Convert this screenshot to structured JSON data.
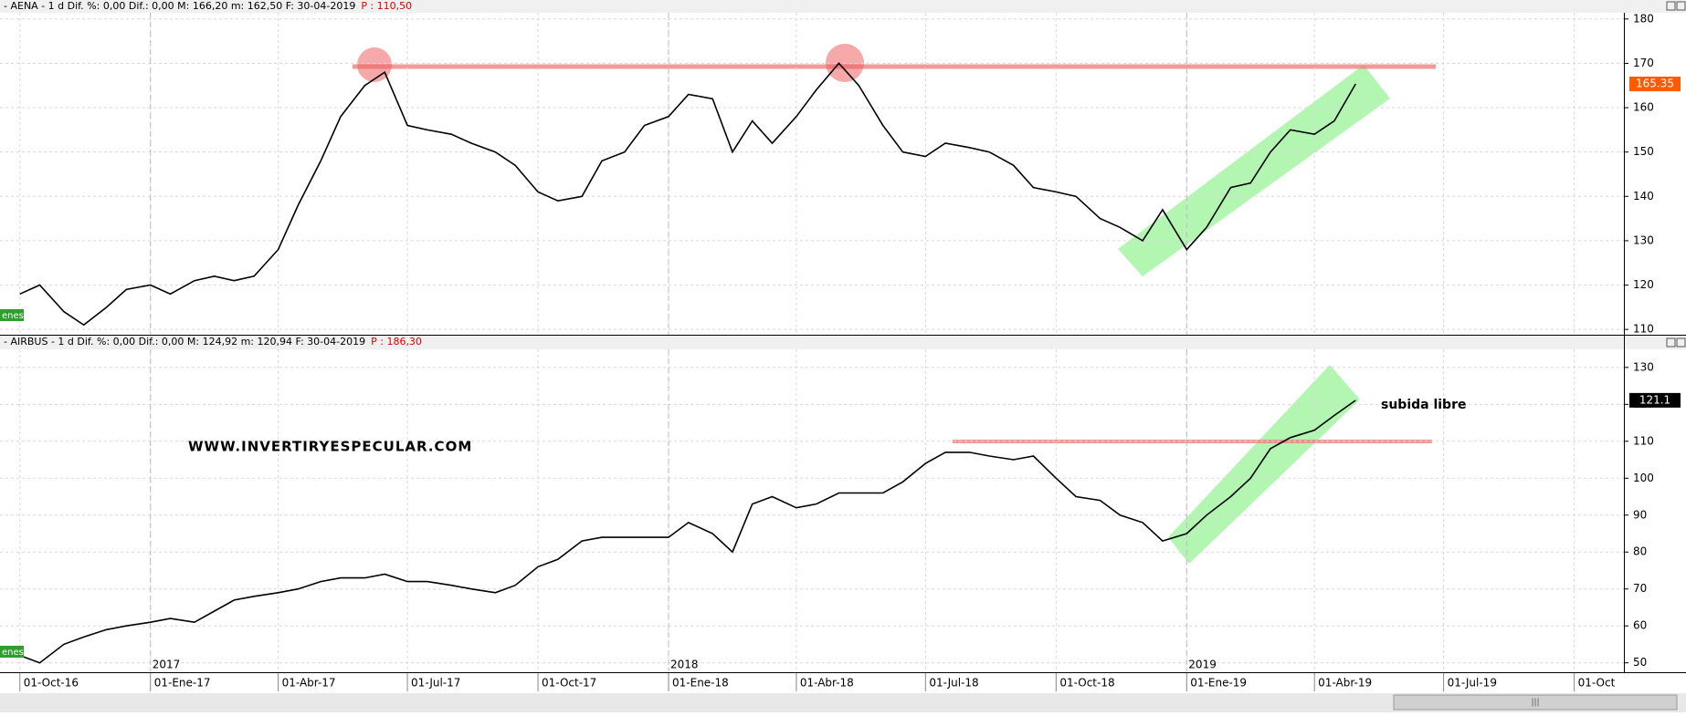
{
  "chart_data": [
    {
      "type": "line",
      "header": "- AENA -  1 d Dif. %: 0,00 Dif.: 0,00 M: 166,20 m: 162,50 F: 30-04-2019",
      "header_price": "P : 110,50",
      "last_price": "165.35",
      "tag": "enes",
      "x": [
        "2016-10-01",
        "2016-10-15",
        "2016-11-01",
        "2016-11-15",
        "2016-12-01",
        "2016-12-15",
        "2017-01-01",
        "2017-01-15",
        "2017-02-01",
        "2017-02-15",
        "2017-03-01",
        "2017-03-15",
        "2017-04-01",
        "2017-04-15",
        "2017-05-01",
        "2017-05-15",
        "2017-06-01",
        "2017-06-15",
        "2017-07-01",
        "2017-07-15",
        "2017-08-01",
        "2017-08-15",
        "2017-09-01",
        "2017-09-15",
        "2017-10-01",
        "2017-10-15",
        "2017-11-01",
        "2017-11-15",
        "2017-12-01",
        "2017-12-15",
        "2018-01-01",
        "2018-01-15",
        "2018-02-01",
        "2018-02-15",
        "2018-03-01",
        "2018-03-15",
        "2018-04-01",
        "2018-04-15",
        "2018-05-01",
        "2018-05-15",
        "2018-06-01",
        "2018-06-15",
        "2018-07-01",
        "2018-07-15",
        "2018-08-01",
        "2018-08-15",
        "2018-09-01",
        "2018-09-15",
        "2018-10-01",
        "2018-10-15",
        "2018-11-01",
        "2018-11-15",
        "2018-12-01",
        "2018-12-15",
        "2019-01-01",
        "2019-01-15",
        "2019-02-01",
        "2019-02-15",
        "2019-03-01",
        "2019-03-15",
        "2019-04-01",
        "2019-04-15",
        "2019-04-30"
      ],
      "series": [
        {
          "name": "AENA",
          "color": "#000000",
          "values": [
            118,
            120,
            114,
            111,
            115,
            119,
            120,
            118,
            121,
            122,
            121,
            122,
            128,
            138,
            148,
            158,
            165,
            168,
            156,
            155,
            154,
            152,
            150,
            147,
            141,
            139,
            140,
            148,
            150,
            156,
            158,
            163,
            162,
            150,
            157,
            152,
            158,
            164,
            170,
            165,
            156,
            150,
            149,
            152,
            151,
            150,
            147,
            142,
            141,
            140,
            135,
            133,
            130,
            137,
            128,
            133,
            142,
            143,
            150,
            155,
            154,
            157,
            165.35
          ]
        }
      ],
      "xlim": [
        "2016-09-17",
        "2019-11-05"
      ],
      "ylim": [
        108.8,
        181.4
      ],
      "yticks": [
        110,
        120,
        130,
        140,
        150,
        160,
        170,
        180
      ],
      "grid": true
    },
    {
      "type": "line",
      "header": "- AIRBUS -  1 d Dif. %: 0,00 Dif.: 0,00 M: 124,92 m: 120,94 F: 30-04-2019",
      "header_price": "P : 186,30",
      "last_price": "121.1",
      "tag": "enes",
      "watermark": "WWW.INVERTIRYESPECULAR.COM",
      "annotation": "subida libre",
      "x": [
        "2016-10-01",
        "2016-10-15",
        "2016-11-01",
        "2016-11-15",
        "2016-12-01",
        "2016-12-15",
        "2017-01-01",
        "2017-01-15",
        "2017-02-01",
        "2017-02-15",
        "2017-03-01",
        "2017-03-15",
        "2017-04-01",
        "2017-04-15",
        "2017-05-01",
        "2017-05-15",
        "2017-06-01",
        "2017-06-15",
        "2017-07-01",
        "2017-07-15",
        "2017-08-01",
        "2017-08-15",
        "2017-09-01",
        "2017-09-15",
        "2017-10-01",
        "2017-10-15",
        "2017-11-01",
        "2017-11-15",
        "2017-12-01",
        "2017-12-15",
        "2018-01-01",
        "2018-01-15",
        "2018-02-01",
        "2018-02-15",
        "2018-03-01",
        "2018-03-15",
        "2018-04-01",
        "2018-04-15",
        "2018-05-01",
        "2018-05-15",
        "2018-06-01",
        "2018-06-15",
        "2018-07-01",
        "2018-07-15",
        "2018-08-01",
        "2018-08-15",
        "2018-09-01",
        "2018-09-15",
        "2018-10-01",
        "2018-10-15",
        "2018-11-01",
        "2018-11-15",
        "2018-12-01",
        "2018-12-15",
        "2019-01-01",
        "2019-01-15",
        "2019-02-01",
        "2019-02-15",
        "2019-03-01",
        "2019-03-15",
        "2019-04-01",
        "2019-04-15",
        "2019-04-30"
      ],
      "series": [
        {
          "name": "AIRBUS",
          "color": "#000000",
          "values": [
            52,
            50,
            55,
            57,
            59,
            60,
            61,
            62,
            61,
            64,
            67,
            68,
            69,
            70,
            72,
            73,
            73,
            74,
            72,
            72,
            71,
            70,
            69,
            71,
            76,
            78,
            83,
            84,
            84,
            84,
            84,
            88,
            85,
            80,
            93,
            95,
            92,
            93,
            96,
            96,
            96,
            99,
            104,
            107,
            107,
            106,
            105,
            106,
            100,
            95,
            94,
            90,
            88,
            83,
            85,
            90,
            95,
            100,
            108,
            111,
            113,
            117,
            121.1
          ]
        }
      ],
      "xlim": [
        "2016-09-17",
        "2019-11-05"
      ],
      "ylim": [
        47.7,
        134.9
      ],
      "yticks": [
        50,
        60,
        70,
        80,
        90,
        100,
        110,
        120,
        130
      ],
      "grid": true,
      "xticks": [
        {
          "value": "2016-10-01",
          "label": "01-Oct-16"
        },
        {
          "value": "2017-01-01",
          "label": "01-Ene-17"
        },
        {
          "value": "2017-04-01",
          "label": "01-Abr-17"
        },
        {
          "value": "2017-07-01",
          "label": "01-Jul-17"
        },
        {
          "value": "2017-10-01",
          "label": "01-Oct-17"
        },
        {
          "value": "2018-01-01",
          "label": "01-Ene-18"
        },
        {
          "value": "2018-04-01",
          "label": "01-Abr-18"
        },
        {
          "value": "2018-07-01",
          "label": "01-Jul-18"
        },
        {
          "value": "2018-10-01",
          "label": "01-Oct-18"
        },
        {
          "value": "2019-01-01",
          "label": "01-Ene-19"
        },
        {
          "value": "2019-04-01",
          "label": "01-Abr-19"
        },
        {
          "value": "2019-07-01",
          "label": "01-Jul-19"
        },
        {
          "value": "2019-10-01",
          "label": "01-Oct"
        }
      ],
      "year_ticks": [
        {
          "value": "2017-01-01",
          "label": "2017"
        },
        {
          "value": "2018-01-01",
          "label": "2018"
        },
        {
          "value": "2019-01-01",
          "label": "2019"
        }
      ]
    }
  ]
}
